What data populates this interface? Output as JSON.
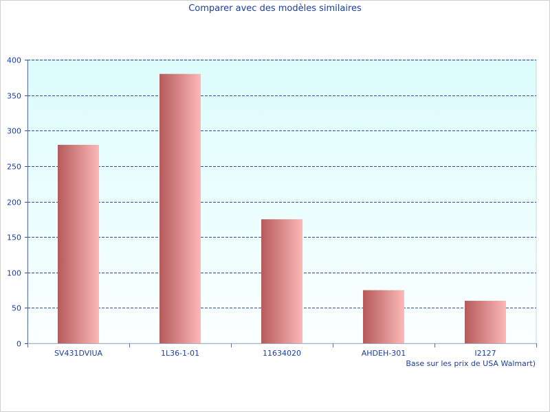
{
  "chart_data": {
    "type": "bar",
    "title": "Comparer avec des modèles similaires",
    "note": "Base sur les prix de USA Walmart)",
    "categories": [
      "SV431DVIUA",
      "1L36-1-01",
      "11634020",
      "AHDEH-301",
      "I2127"
    ],
    "values": [
      280,
      380,
      175,
      75,
      60
    ],
    "ylim": [
      0,
      400
    ],
    "yticks": [
      0,
      50,
      100,
      150,
      200,
      250,
      300,
      350,
      400
    ],
    "grid": true,
    "legend": "none",
    "colors": {
      "bar_dark": "#b55a5a",
      "bar_light": "#fcb8b8",
      "plot_top": "#dcfcfc",
      "plot_bottom": "#fbffff",
      "grid": "#304a9a",
      "text": "#1a3ea0"
    }
  }
}
